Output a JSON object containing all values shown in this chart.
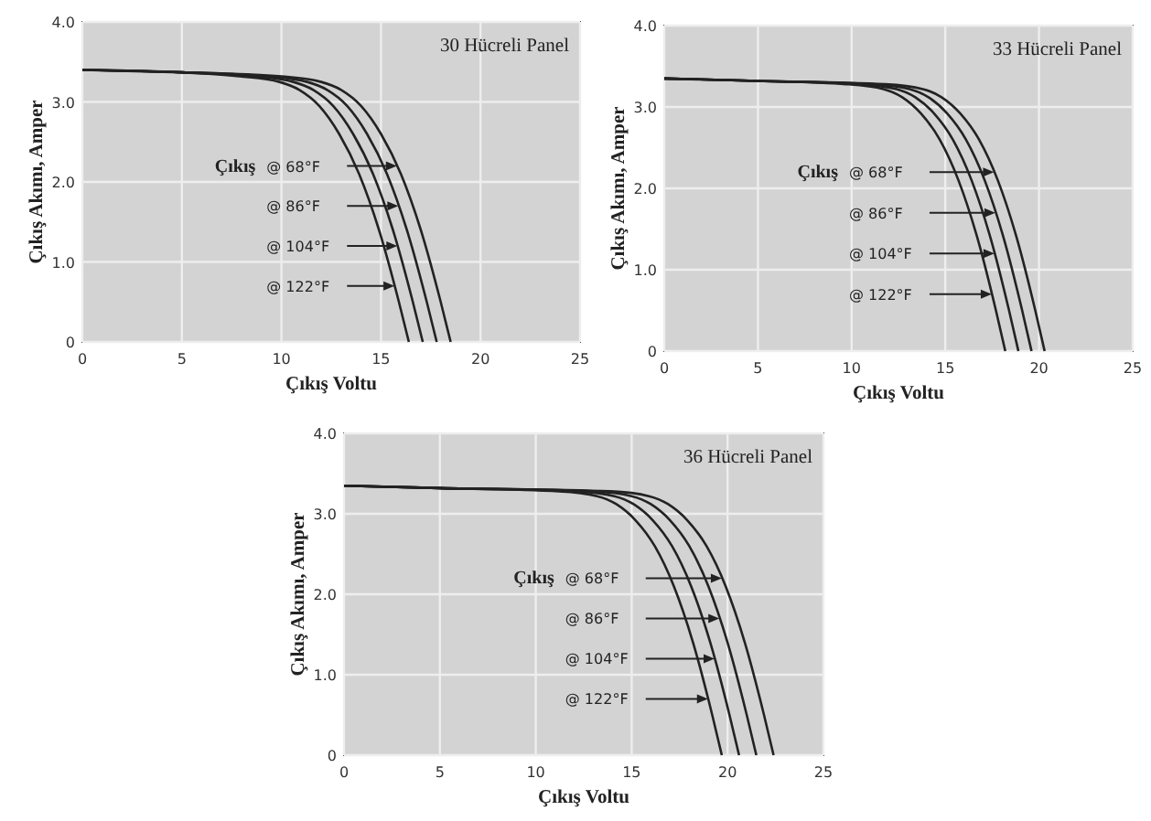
{
  "chart_data": [
    {
      "type": "line",
      "title": "30 Hücreli Panel",
      "xlabel": "Çıkış Voltu",
      "ylabel": "Çıkış Akımı, Amper",
      "annotations": [
        "Çıkış"
      ],
      "xlim": [
        0,
        25
      ],
      "ylim": [
        0,
        4
      ],
      "xticks": [
        0,
        5,
        10,
        15,
        20,
        25
      ],
      "yticks": [
        {
          "value": 0,
          "label": "0"
        },
        {
          "value": 1,
          "label": "1.0"
        },
        {
          "value": 2,
          "label": "2.0"
        },
        {
          "value": 3,
          "label": "3.0"
        },
        {
          "value": 4,
          "label": "4.0"
        }
      ],
      "grid": true,
      "legend": "center",
      "marker": "none",
      "line_style": "solid",
      "series": [
        {
          "name": "@ 68°F",
          "color": "#222222",
          "x": [
            0,
            5,
            10,
            12,
            13,
            14,
            15,
            16,
            17,
            18,
            18.5
          ],
          "values": [
            3.4,
            3.37,
            3.32,
            3.25,
            3.15,
            2.95,
            2.6,
            2.1,
            1.4,
            0.5,
            0
          ]
        },
        {
          "name": "@ 86°F",
          "color": "#222222",
          "x": [
            0,
            5,
            9.3,
            11.3,
            12.3,
            13.3,
            14.3,
            15.3,
            16.3,
            17.3,
            17.8
          ],
          "values": [
            3.4,
            3.37,
            3.32,
            3.25,
            3.15,
            2.95,
            2.6,
            2.1,
            1.4,
            0.5,
            0
          ]
        },
        {
          "name": "@ 104°F",
          "color": "#222222",
          "x": [
            0,
            5,
            8.6,
            10.6,
            11.6,
            12.6,
            13.6,
            14.6,
            15.6,
            16.6,
            17.1
          ],
          "values": [
            3.4,
            3.37,
            3.32,
            3.25,
            3.15,
            2.95,
            2.6,
            2.1,
            1.4,
            0.5,
            0
          ]
        },
        {
          "name": "@ 122°F",
          "color": "#222222",
          "x": [
            0,
            5,
            7.9,
            9.9,
            10.9,
            11.9,
            12.9,
            13.9,
            14.9,
            15.9,
            16.4
          ],
          "values": [
            3.4,
            3.37,
            3.32,
            3.25,
            3.15,
            2.95,
            2.6,
            2.1,
            1.4,
            0.5,
            0
          ]
        }
      ]
    },
    {
      "type": "line",
      "title": "33 Hücreli Panel",
      "xlabel": "Çıkış Voltu",
      "ylabel": "Çıkış Akımı, Amper",
      "annotations": [
        "Çıkış"
      ],
      "xlim": [
        0,
        25
      ],
      "ylim": [
        0,
        4
      ],
      "xticks": [
        0,
        5,
        10,
        15,
        20,
        25
      ],
      "yticks": [
        {
          "value": 0,
          "label": "0"
        },
        {
          "value": 1,
          "label": "1.0"
        },
        {
          "value": 2,
          "label": "2.0"
        },
        {
          "value": 3,
          "label": "3.0"
        },
        {
          "value": 4,
          "label": "4.0"
        }
      ],
      "grid": true,
      "legend": "center",
      "marker": "none",
      "line_style": "solid",
      "series": [
        {
          "name": "@ 68°F",
          "color": "#222222",
          "x": [
            0,
            5,
            11.8,
            13.8,
            14.8,
            15.8,
            16.8,
            17.8,
            18.8,
            19.8,
            20.3
          ],
          "values": [
            3.35,
            3.32,
            3.28,
            3.22,
            3.12,
            2.92,
            2.6,
            2.1,
            1.4,
            0.5,
            0
          ]
        },
        {
          "name": "@ 86°F",
          "color": "#222222",
          "x": [
            0,
            5,
            11.1,
            13.1,
            14.1,
            15.1,
            16.1,
            17.1,
            18.1,
            19.1,
            19.6
          ],
          "values": [
            3.35,
            3.32,
            3.28,
            3.22,
            3.12,
            2.92,
            2.6,
            2.1,
            1.4,
            0.5,
            0
          ]
        },
        {
          "name": "@ 104°F",
          "color": "#222222",
          "x": [
            0,
            5,
            10.4,
            12.4,
            13.4,
            14.4,
            15.4,
            16.4,
            17.4,
            18.4,
            18.9
          ],
          "values": [
            3.35,
            3.32,
            3.28,
            3.22,
            3.12,
            2.92,
            2.6,
            2.1,
            1.4,
            0.5,
            0
          ]
        },
        {
          "name": "@ 122°F",
          "color": "#222222",
          "x": [
            0,
            5,
            9.7,
            11.7,
            12.7,
            13.7,
            14.7,
            15.7,
            16.7,
            17.7,
            18.2
          ],
          "values": [
            3.35,
            3.32,
            3.28,
            3.22,
            3.12,
            2.92,
            2.6,
            2.1,
            1.4,
            0.5,
            0
          ]
        }
      ]
    },
    {
      "type": "line",
      "title": "36 Hücreli Panel",
      "xlabel": "Çıkış Voltu",
      "ylabel": "Çıkış Akımı, Amper",
      "annotations": [
        "Çıkış"
      ],
      "xlim": [
        0,
        25
      ],
      "ylim": [
        0,
        4
      ],
      "xticks": [
        0,
        5,
        10,
        15,
        20,
        25
      ],
      "yticks": [
        {
          "value": 0,
          "label": "0"
        },
        {
          "value": 1,
          "label": "1.0"
        },
        {
          "value": 2,
          "label": "2.0"
        },
        {
          "value": 3,
          "label": "3.0"
        },
        {
          "value": 4,
          "label": "4.0"
        }
      ],
      "grid": true,
      "legend": "center",
      "marker": "none",
      "line_style": "solid",
      "series": [
        {
          "name": "@ 68°F",
          "color": "#222222",
          "x": [
            0,
            5,
            13.9,
            15.9,
            16.9,
            17.9,
            18.9,
            19.9,
            20.9,
            21.9,
            22.4
          ],
          "values": [
            3.35,
            3.32,
            3.28,
            3.22,
            3.12,
            2.92,
            2.6,
            2.1,
            1.4,
            0.5,
            0
          ]
        },
        {
          "name": "@ 86°F",
          "color": "#222222",
          "x": [
            0,
            5,
            13,
            15,
            16,
            17,
            18,
            19,
            20,
            21,
            21.5
          ],
          "values": [
            3.35,
            3.32,
            3.28,
            3.22,
            3.12,
            2.92,
            2.6,
            2.1,
            1.4,
            0.5,
            0
          ]
        },
        {
          "name": "@ 104°F",
          "color": "#222222",
          "x": [
            0,
            5,
            12.1,
            14.1,
            15.1,
            16.1,
            17.1,
            18.1,
            19.1,
            20.1,
            20.6
          ],
          "values": [
            3.35,
            3.32,
            3.28,
            3.22,
            3.12,
            2.92,
            2.6,
            2.1,
            1.4,
            0.5,
            0
          ]
        },
        {
          "name": "@ 122°F",
          "color": "#222222",
          "x": [
            0,
            5,
            11.2,
            13.2,
            14.2,
            15.2,
            16.2,
            17.2,
            18.2,
            19.2,
            19.7
          ],
          "values": [
            3.35,
            3.32,
            3.28,
            3.22,
            3.12,
            2.92,
            2.6,
            2.1,
            1.4,
            0.5,
            0
          ]
        }
      ]
    }
  ]
}
